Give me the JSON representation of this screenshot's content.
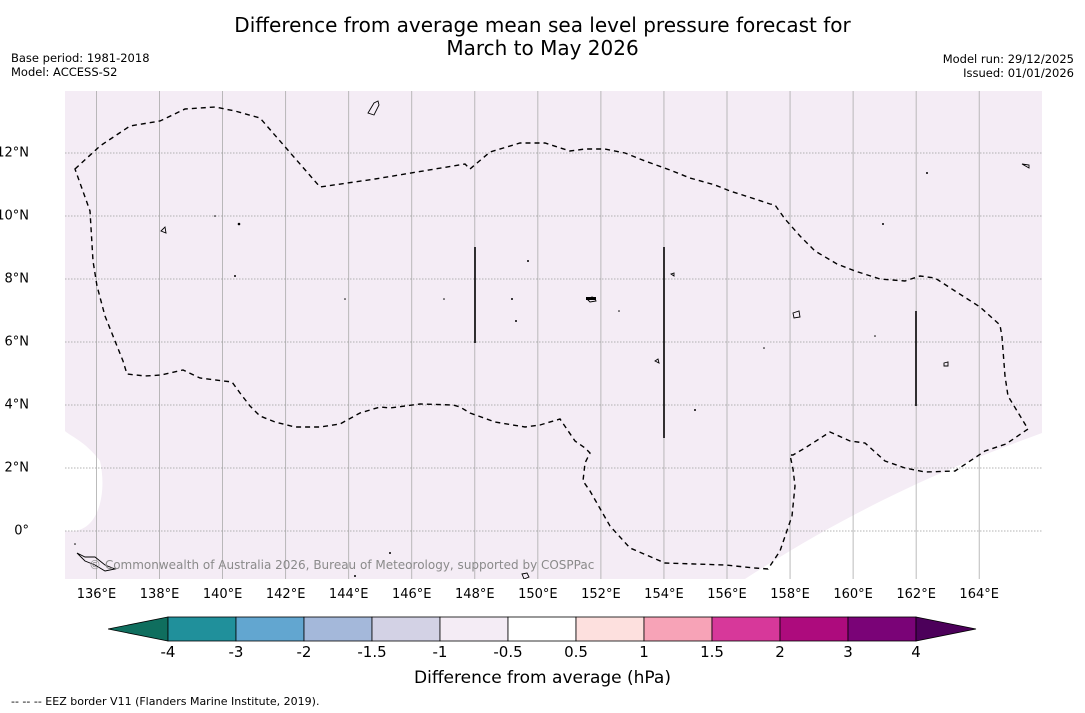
{
  "title": {
    "line1": "Difference from average mean sea level pressure forecast for",
    "line2": "March to May 2026"
  },
  "info_left": {
    "base_period": "Base period: 1981-2018",
    "model": "Model: ACCESS-S2"
  },
  "info_right": {
    "model_run": "Model run: 29/12/2025",
    "issued": "Issued: 01/01/2026"
  },
  "map": {
    "x_ticks": [
      "136°E",
      "138°E",
      "140°E",
      "142°E",
      "144°E",
      "146°E",
      "148°E",
      "150°E",
      "152°E",
      "154°E",
      "156°E",
      "158°E",
      "160°E",
      "162°E",
      "164°E"
    ],
    "y_ticks": [
      "12°N",
      "10°N",
      "8°N",
      "6°N",
      "4°N",
      "2°N",
      "0°"
    ],
    "fill_color": "#f4ecf5",
    "copyright": "© Commonwealth of Australia 2026, Bureau of Meteorology, supported by COSPPac"
  },
  "colorbar": {
    "colors": [
      "#0f6e5e",
      "#20909b",
      "#62a6d0",
      "#a4b8da",
      "#d3d2e5",
      "#f4ecf5",
      "#ffffff",
      "#fde0de",
      "#f7a3b7",
      "#d7389a",
      "#ad0b7d",
      "#7a0377",
      "#4c005a"
    ],
    "ticks": [
      "-4",
      "-3",
      "-2",
      "-1.5",
      "-1",
      "-0.5",
      "0.5",
      "1",
      "1.5",
      "2",
      "3",
      "4"
    ],
    "label": "Difference from average (hPa)"
  },
  "footnote": "--  --  -- EEZ border V11 (Flanders Marine Institute, 2019)."
}
